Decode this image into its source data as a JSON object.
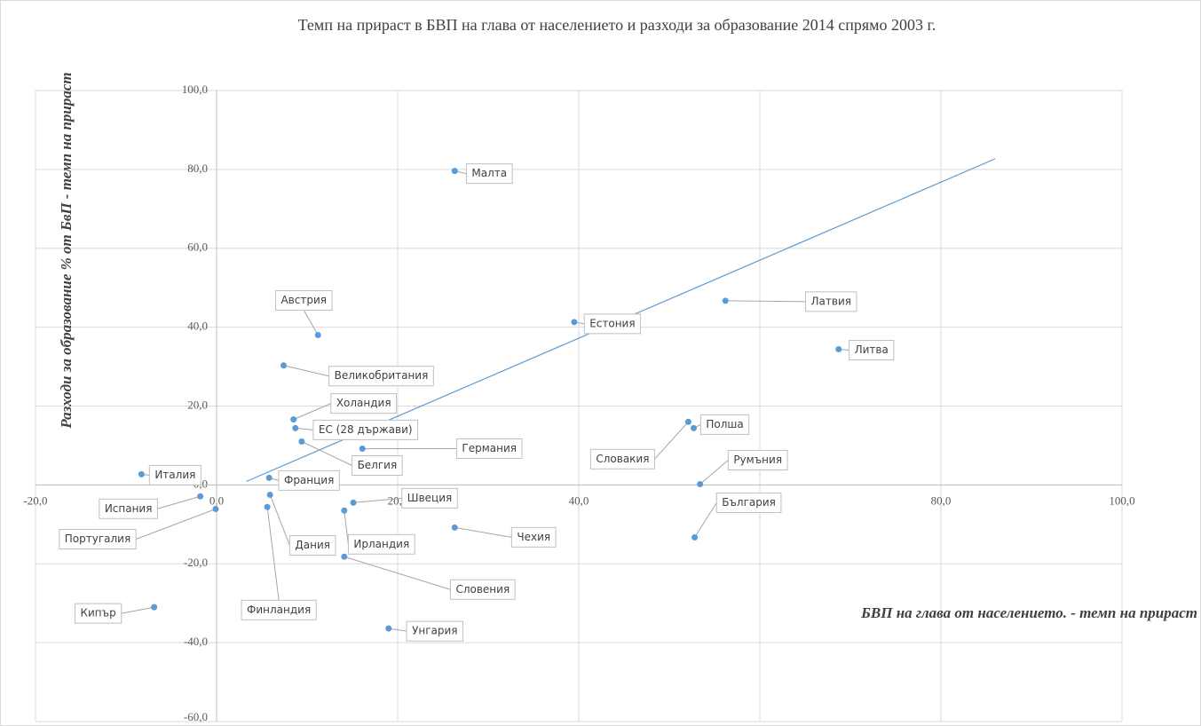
{
  "chart_data": {
    "type": "scatter",
    "title": "Темп на прираст в БВП на глава от населението и разходи за образование 2014 спрямо 2003 г.",
    "x_label": "БВП на глава от населението. - темп на прираст",
    "y_label": "Разходи за образование % от БвП - темп на прираст",
    "color": "#5b9bd5",
    "labels": [
      "Малта",
      "Естония",
      "Латвия",
      "Литва",
      "Австрия",
      "Великобритания",
      "Холандия",
      "ЕС (28 държави)",
      "Белгия",
      "Германия",
      "Италия",
      "Франция",
      "Испания",
      "Португалия",
      "Дания",
      "Финландия",
      "Швеция",
      "Ирландия",
      "Словения",
      "Чехия",
      "Унгария",
      "Кипър",
      "Полша",
      "Словакия",
      "Румъния",
      "България"
    ],
    "x": [
      26.3,
      39.5,
      56.2,
      68.7,
      11.2,
      7.4,
      8.5,
      8.7,
      9.4,
      16.1,
      -8.3,
      5.8,
      -1.8,
      -0.1,
      5.9,
      5.6,
      15.1,
      14.1,
      14.1,
      26.3,
      19.0,
      -6.9,
      52.7,
      52.1,
      53.4,
      52.8
    ],
    "values": [
      79.6,
      41.3,
      46.7,
      34.4,
      38.0,
      30.3,
      16.6,
      14.4,
      11.0,
      9.2,
      2.7,
      1.8,
      -2.9,
      -6.1,
      -2.5,
      -5.6,
      -4.5,
      -6.5,
      -18.2,
      -10.8,
      -36.4,
      -31.0,
      14.4,
      16.0,
      0.2,
      -13.3
    ],
    "trendline": {
      "x": [
        3.3,
        86.0
      ],
      "values": [
        0.9,
        82.7
      ],
      "color": "#5b9bd5"
    },
    "xlim": [
      -20,
      100
    ],
    "ylim": [
      -60,
      100
    ],
    "xticks": [
      {
        "value": -20,
        "label": "-20,0"
      },
      {
        "value": 0,
        "label": "0,0"
      },
      {
        "value": 20,
        "label": "20,0"
      },
      {
        "value": 40,
        "label": "40,0"
      },
      {
        "value": 60,
        "label": "60,0"
      },
      {
        "value": 80,
        "label": "80,0"
      },
      {
        "value": 100,
        "label": "100,0"
      }
    ],
    "yticks": [
      {
        "value": -60,
        "label": "-60,0"
      },
      {
        "value": -40,
        "label": "-40,0"
      },
      {
        "value": -20,
        "label": "-20,0"
      },
      {
        "value": 0,
        "label": "0,0"
      },
      {
        "value": 20,
        "label": "20,0"
      },
      {
        "value": 40,
        "label": "40,0"
      },
      {
        "value": 60,
        "label": "60,0"
      },
      {
        "value": 80,
        "label": "80,0"
      },
      {
        "value": 100,
        "label": "100,0"
      }
    ],
    "grid": true
  }
}
